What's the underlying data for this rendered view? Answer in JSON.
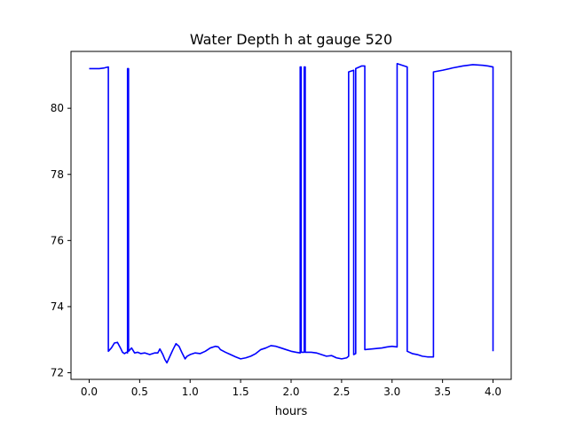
{
  "chart_data": {
    "type": "line",
    "title": "Water Depth h at gauge 520",
    "xlabel": "hours",
    "ylabel": "",
    "xlim": [
      -0.18,
      4.18
    ],
    "ylim": [
      71.8,
      81.72
    ],
    "xticks": [
      0.0,
      0.5,
      1.0,
      1.5,
      2.0,
      2.5,
      3.0,
      3.5,
      4.0
    ],
    "xtick_labels": [
      "0.0",
      "0.5",
      "1.0",
      "1.5",
      "2.0",
      "2.5",
      "3.0",
      "3.5",
      "4.0"
    ],
    "yticks": [
      72,
      74,
      76,
      78,
      80
    ],
    "ytick_labels": [
      "72",
      "74",
      "76",
      "78",
      "80"
    ],
    "grid": false,
    "legend": "none",
    "series": [
      {
        "color": "#0000ff",
        "x": [
          0.0,
          0.1,
          0.15,
          0.19,
          0.19,
          0.22,
          0.25,
          0.28,
          0.31,
          0.33,
          0.35,
          0.37,
          0.38,
          0.38,
          0.39,
          0.39,
          0.42,
          0.45,
          0.48,
          0.51,
          0.55,
          0.6,
          0.65,
          0.68,
          0.7,
          0.73,
          0.75,
          0.77,
          0.8,
          0.83,
          0.86,
          0.89,
          0.92,
          0.95,
          0.97,
          1.0,
          1.05,
          1.1,
          1.15,
          1.2,
          1.25,
          1.28,
          1.3,
          1.35,
          1.4,
          1.45,
          1.5,
          1.55,
          1.6,
          1.65,
          1.7,
          1.75,
          1.8,
          1.85,
          1.9,
          1.95,
          2.0,
          2.05,
          2.09,
          2.09,
          2.1,
          2.1,
          2.13,
          2.13,
          2.14,
          2.14,
          2.2,
          2.25,
          2.3,
          2.35,
          2.4,
          2.45,
          2.5,
          2.55,
          2.57,
          2.57,
          2.62,
          2.62,
          2.64,
          2.64,
          2.7,
          2.73,
          2.73,
          2.8,
          2.9,
          2.95,
          3.0,
          3.05,
          3.05,
          3.1,
          3.15,
          3.15,
          3.2,
          3.25,
          3.3,
          3.35,
          3.41,
          3.41,
          3.5,
          3.6,
          3.7,
          3.8,
          3.9,
          3.95,
          4.0,
          4.0
        ],
        "y": [
          81.2,
          81.2,
          81.22,
          81.25,
          72.65,
          72.75,
          72.9,
          72.92,
          72.75,
          72.62,
          72.58,
          72.62,
          72.6,
          81.2,
          81.2,
          72.65,
          72.75,
          72.6,
          72.62,
          72.58,
          72.6,
          72.55,
          72.6,
          72.6,
          72.72,
          72.55,
          72.4,
          72.3,
          72.5,
          72.7,
          72.88,
          72.8,
          72.6,
          72.42,
          72.5,
          72.55,
          72.6,
          72.58,
          72.65,
          72.75,
          72.8,
          72.78,
          72.7,
          72.62,
          72.55,
          72.48,
          72.42,
          72.45,
          72.5,
          72.58,
          72.7,
          72.75,
          72.82,
          72.8,
          72.75,
          72.7,
          72.65,
          72.62,
          72.6,
          81.25,
          81.25,
          72.62,
          72.62,
          81.25,
          81.25,
          72.62,
          72.62,
          72.6,
          72.55,
          72.5,
          72.52,
          72.45,
          72.42,
          72.45,
          72.5,
          81.1,
          81.15,
          72.55,
          72.58,
          81.2,
          81.28,
          81.28,
          72.7,
          72.72,
          72.75,
          72.78,
          72.8,
          72.78,
          81.35,
          81.3,
          81.25,
          72.65,
          72.58,
          72.55,
          72.5,
          72.48,
          72.48,
          81.1,
          81.15,
          81.22,
          81.28,
          81.32,
          81.3,
          81.28,
          81.25,
          72.65
        ]
      }
    ]
  }
}
